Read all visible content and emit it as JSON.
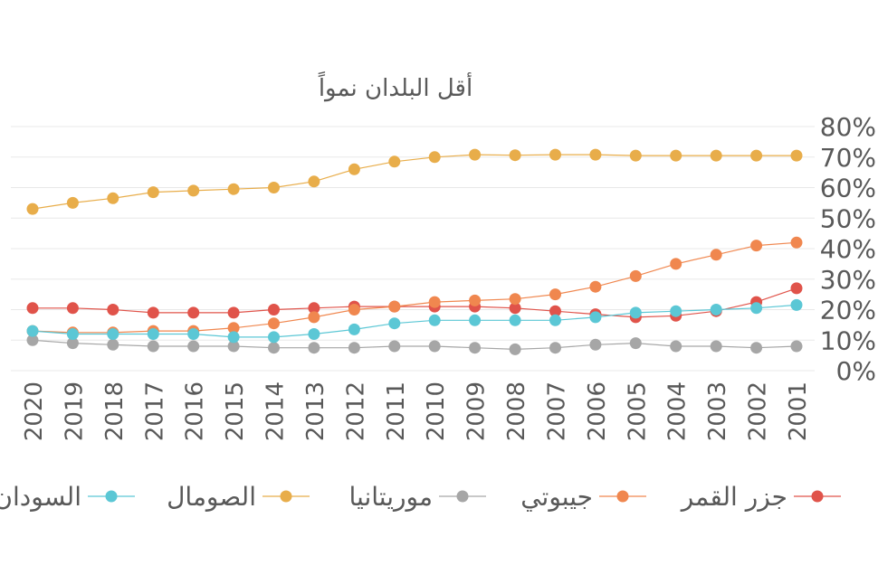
{
  "chart_data": {
    "type": "line",
    "title": "أقل البلدان نمواً",
    "x_reversed": true,
    "categories": [
      "2001",
      "2002",
      "2003",
      "2004",
      "2005",
      "2006",
      "2007",
      "2008",
      "2009",
      "2010",
      "2011",
      "2012",
      "2013",
      "2014",
      "2015",
      "2016",
      "2017",
      "2018",
      "2019",
      "2020"
    ],
    "ylim": [
      0,
      80
    ],
    "yticks": [
      "0%",
      "10%",
      "20%",
      "30%",
      "40%",
      "50%",
      "60%",
      "70%",
      "80%"
    ],
    "grid": true,
    "legend_position": "bottom",
    "series": [
      {
        "name": "جزر القمر",
        "color": "#e0534a",
        "values": [
          27,
          22.5,
          19.5,
          18,
          17.5,
          18.5,
          19.5,
          20.5,
          21,
          21,
          21,
          21,
          20.5,
          20,
          19,
          19,
          19,
          20,
          20.5,
          20.5
        ]
      },
      {
        "name": "جيبوتي",
        "color": "#f0874f",
        "values": [
          42,
          41,
          38,
          35,
          31,
          27.5,
          25,
          23.5,
          23,
          22.5,
          21,
          20,
          17.5,
          15.5,
          14,
          13,
          13,
          12.5,
          12.5,
          13
        ]
      },
      {
        "name": "موريتانيا",
        "color": "#a6a6a6",
        "values": [
          8,
          7.5,
          8,
          8,
          9,
          8.5,
          7.5,
          7,
          7.5,
          8,
          8,
          7.5,
          7.5,
          7.5,
          8,
          8,
          8,
          8.5,
          9,
          10
        ]
      },
      {
        "name": "الصومال",
        "color": "#e8ad4a",
        "values": [
          70.5,
          70.5,
          70.5,
          70.5,
          70.5,
          70.8,
          70.8,
          70.6,
          70.8,
          70,
          68.5,
          66,
          62,
          60,
          59.5,
          59,
          58.5,
          56.5,
          55,
          53
        ]
      },
      {
        "name": "السودان",
        "color": "#5bc7d5",
        "values": [
          21.5,
          20.5,
          20,
          19.5,
          19,
          17.5,
          16.5,
          16.5,
          16.5,
          16.5,
          15.5,
          13.5,
          12,
          11,
          11,
          12,
          12,
          12,
          12,
          13
        ]
      }
    ]
  }
}
